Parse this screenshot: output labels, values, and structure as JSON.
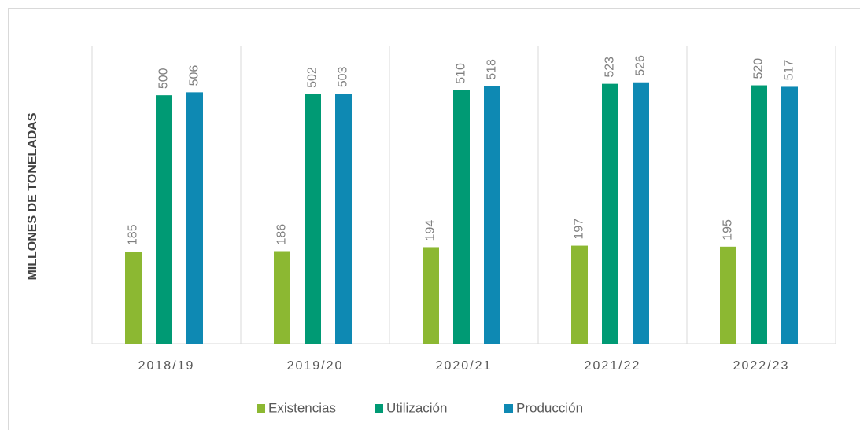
{
  "chart_data": {
    "type": "bar",
    "y_label": "MILLONES DE TONELADAS",
    "categories": [
      "2018/19",
      "2019/20",
      "2020/21",
      "2021/22",
      "2022/23"
    ],
    "series": [
      {
        "name": "Existencias",
        "color": "#8cb832",
        "values": [
          185,
          186,
          194,
          197,
          195
        ]
      },
      {
        "name": "Utilización",
        "color": "#009a74",
        "values": [
          500,
          502,
          510,
          523,
          520
        ]
      },
      {
        "name": "Producción",
        "color": "#0e89b3",
        "values": [
          506,
          503,
          518,
          526,
          517
        ]
      }
    ],
    "ylim": [
      0,
      600
    ],
    "legend": "bottom"
  }
}
